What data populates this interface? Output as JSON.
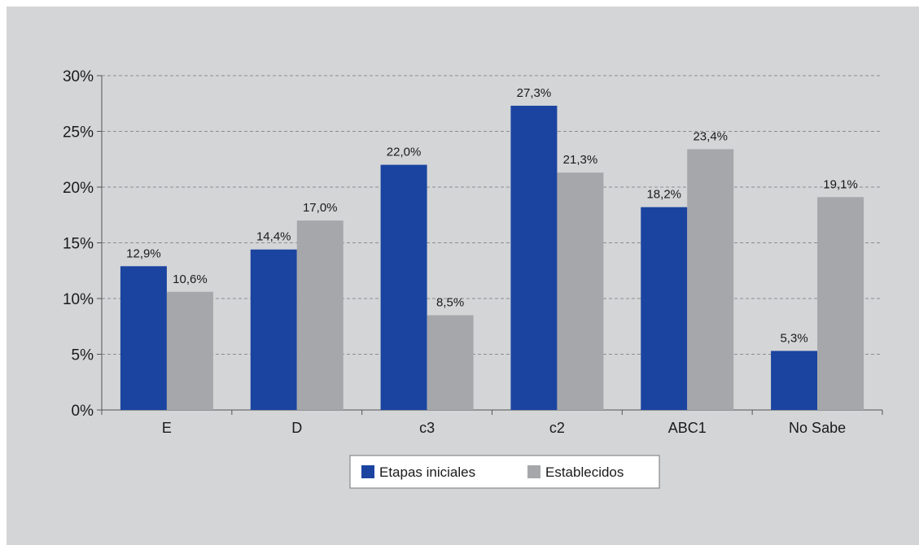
{
  "chart_data": {
    "type": "bar",
    "categories": [
      "E",
      "D",
      "c3",
      "c2",
      "ABC1",
      "No Sabe"
    ],
    "series": [
      {
        "name": "Etapas iniciales",
        "color": "#1b44a0",
        "values": [
          12.9,
          14.4,
          22.0,
          27.3,
          18.2,
          5.3
        ],
        "labels": [
          "12,9%",
          "14,4%",
          "22,0%",
          "27,3%",
          "18,2%",
          "5,3%"
        ]
      },
      {
        "name": "Establecidos",
        "color": "#a6a7aa",
        "values": [
          10.6,
          17.0,
          8.5,
          21.3,
          23.4,
          19.1
        ],
        "labels": [
          "10,6%",
          "17,0%",
          "8,5%",
          "21,3%",
          "23,4%",
          "19,1%"
        ]
      }
    ],
    "yticks": [
      "0%",
      "5%",
      "10%",
      "15%",
      "20%",
      "25%",
      "30%"
    ],
    "ylim": [
      0,
      30
    ],
    "grid": true,
    "legend": "bottom-center",
    "background_color": "#d4d5d7",
    "title": "",
    "xlabel": "",
    "ylabel": ""
  }
}
